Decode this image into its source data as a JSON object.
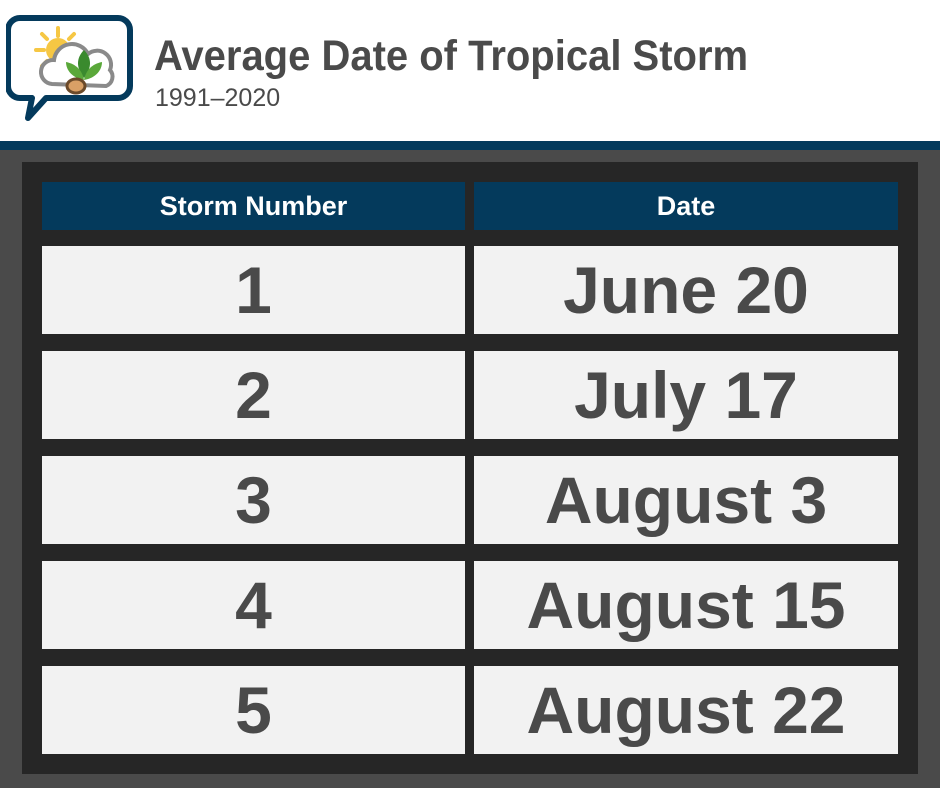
{
  "header": {
    "title": "Average Date of Tropical Storm",
    "subtitle": "1991–2020",
    "logo_icon": "weather-chat-bubble-icon"
  },
  "table": {
    "headers": [
      "Storm Number",
      "Date"
    ],
    "rows": [
      {
        "storm_number": "1",
        "date": "June 20"
      },
      {
        "storm_number": "2",
        "date": "July 17"
      },
      {
        "storm_number": "3",
        "date": "August 3"
      },
      {
        "storm_number": "4",
        "date": "August 15"
      },
      {
        "storm_number": "5",
        "date": "August 22"
      }
    ]
  },
  "colors": {
    "navy": "#043a5c",
    "text_gray": "#4a4a4a",
    "cell_bg": "#f2f2f2",
    "frame": "#262626",
    "sun": "#f6c744",
    "leaf": "#3a8a2e"
  }
}
